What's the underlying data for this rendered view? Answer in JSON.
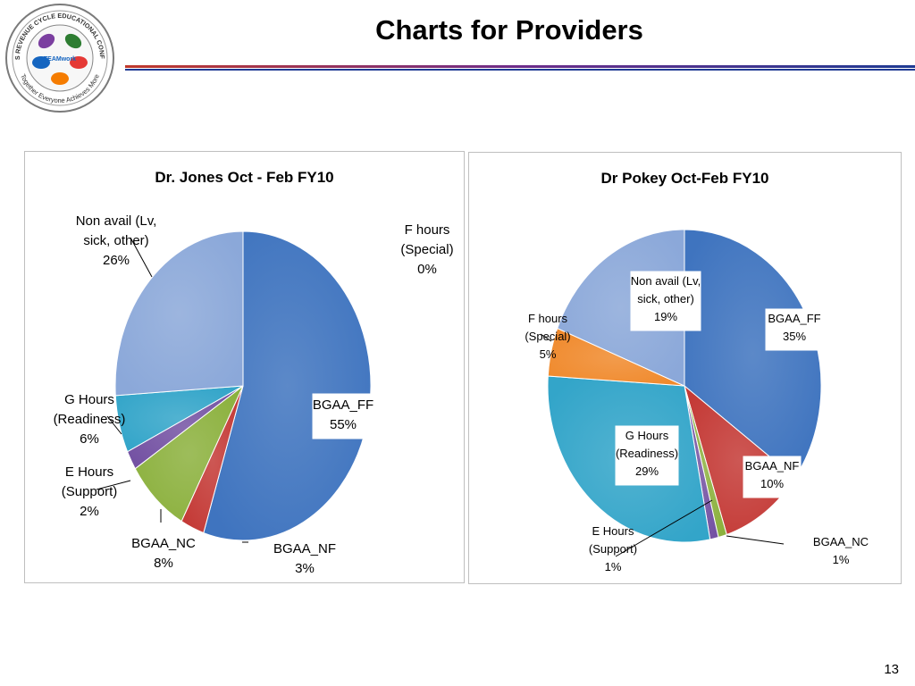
{
  "slide": {
    "title": "Charts for Providers",
    "page_number": "13",
    "logo": {
      "ring_text_top": "2011 MHS REVENUE CYCLE EDUCATIONAL CONFERENCE",
      "ring_text_bottom": "Together Everyone Achieves More",
      "center_text": "TEAMwork",
      "hand_labels": [
        "MEPRS",
        "UBO",
        "UBU",
        "DQ"
      ],
      "colors": [
        "#e53935",
        "#7b3fa0",
        "#2e7d32",
        "#f57c00",
        "#1565c0"
      ]
    },
    "rule_colors": [
      "#c0392b",
      "#1f3a93"
    ]
  },
  "chart_data": [
    {
      "type": "pie",
      "title": "Dr. Jones Oct - Feb FY10",
      "slices": [
        {
          "label": "BGAA_FF",
          "value": 55,
          "pct": "55%",
          "color": "#3f74bf"
        },
        {
          "label": "BGAA_NF",
          "value": 3,
          "pct": "3%",
          "color": "#c43a36"
        },
        {
          "label": "BGAA_NC",
          "value": 8,
          "pct": "8%",
          "color": "#8cb13e"
        },
        {
          "label": "E Hours (Support)",
          "value": 2,
          "pct": "2%",
          "color": "#7452a3"
        },
        {
          "label": "G Hours (Readiness)",
          "value": 6,
          "pct": "6%",
          "color": "#33a5c9"
        },
        {
          "label": "Non avail (Lv, sick, other)",
          "value": 26,
          "pct": "26%",
          "color": "#8ba8d9"
        },
        {
          "label": "F hours (Special)",
          "value": 0,
          "pct": "0%",
          "color": "#f08a2d"
        }
      ],
      "label_lines": [
        {
          "text": [
            "BGAA_FF",
            "55%"
          ]
        },
        {
          "text": [
            "BGAA_NF",
            "3%"
          ]
        },
        {
          "text": [
            "BGAA_NC",
            "8%"
          ]
        },
        {
          "text": [
            "E Hours",
            "(Support)",
            "2%"
          ]
        },
        {
          "text": [
            "G Hours",
            "(Readiness)",
            "6%"
          ]
        },
        {
          "text": [
            "Non avail (Lv,",
            "sick, other)",
            "26%"
          ]
        },
        {
          "text": [
            "F hours",
            "(Special)",
            "0%"
          ]
        }
      ]
    },
    {
      "type": "pie",
      "title": "Dr Pokey Oct-Feb FY10",
      "slices": [
        {
          "label": "BGAA_FF",
          "value": 35,
          "pct": "35%",
          "color": "#3f74bf"
        },
        {
          "label": "BGAA_NF",
          "value": 10,
          "pct": "10%",
          "color": "#c43a36"
        },
        {
          "label": "BGAA_NC",
          "value": 1,
          "pct": "1%",
          "color": "#8cb13e"
        },
        {
          "label": "E Hours (Support)",
          "value": 1,
          "pct": "1%",
          "color": "#7452a3"
        },
        {
          "label": "G Hours (Readiness)",
          "value": 29,
          "pct": "29%",
          "color": "#33a5c9"
        },
        {
          "label": "F hours (Special)",
          "value": 5,
          "pct": "5%",
          "color": "#f08a2d"
        },
        {
          "label": "Non avail (Lv, sick, other)",
          "value": 19,
          "pct": "19%",
          "color": "#8ba8d9"
        }
      ],
      "label_lines": [
        {
          "text": [
            "BGAA_FF",
            "35%"
          ]
        },
        {
          "text": [
            "BGAA_NF",
            "10%"
          ]
        },
        {
          "text": [
            "BGAA_NC",
            "1%"
          ]
        },
        {
          "text": [
            "E Hours",
            "(Support)",
            "1%"
          ]
        },
        {
          "text": [
            "G Hours",
            "(Readiness)",
            "29%"
          ]
        },
        {
          "text": [
            "F hours",
            "(Special)",
            "5%"
          ]
        },
        {
          "text": [
            "Non avail (Lv,",
            "sick, other)",
            "19%"
          ]
        }
      ]
    }
  ]
}
